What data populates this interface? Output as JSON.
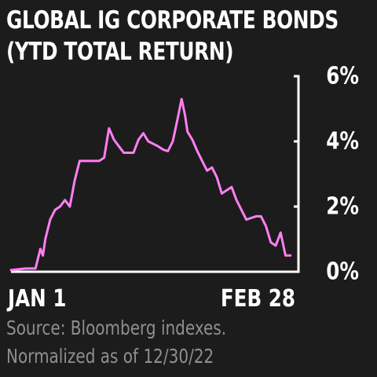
{
  "chart_data": {
    "type": "line",
    "title": "GLOBAL IG CORPORATE BONDS",
    "subtitle": "(YTD TOTAL RETURN)",
    "x_tick_labels": [
      "JAN 1",
      "FEB 28"
    ],
    "x_range": [
      1,
      59
    ],
    "y_tick_labels": [
      "0%",
      "2%",
      "4%",
      "6%"
    ],
    "y_ticks": [
      0,
      2,
      4,
      6
    ],
    "ylim": [
      0,
      6
    ],
    "y_axis_position": "right",
    "grid": false,
    "line_color": "#ff7ff2",
    "series": [
      {
        "x": [
          1,
          4,
          6,
          7,
          7.5,
          8,
          9,
          10,
          11,
          12,
          13,
          14,
          15,
          16,
          17,
          19,
          20,
          21,
          22,
          23,
          24,
          25,
          26,
          27,
          28,
          29,
          31,
          32,
          33,
          34,
          35,
          35.8,
          36.5,
          37,
          38,
          39,
          40,
          41,
          42,
          43,
          44,
          45,
          46,
          47,
          48,
          49,
          50,
          51,
          52,
          53,
          54,
          55,
          56,
          57,
          58
        ],
        "y": [
          0.05,
          0.1,
          0.1,
          0.7,
          0.5,
          1.0,
          1.6,
          1.9,
          2.0,
          2.2,
          2.0,
          2.8,
          3.4,
          3.4,
          3.4,
          3.4,
          3.5,
          4.4,
          4.05,
          3.85,
          3.65,
          3.65,
          3.65,
          4.05,
          4.25,
          4.0,
          3.85,
          3.75,
          3.7,
          4.0,
          4.7,
          5.3,
          4.8,
          4.3,
          4.05,
          3.7,
          3.4,
          3.1,
          3.2,
          2.9,
          2.4,
          2.5,
          2.6,
          2.2,
          1.9,
          1.6,
          1.65,
          1.7,
          1.7,
          1.4,
          0.9,
          0.8,
          1.2,
          0.5,
          0.5
        ]
      }
    ]
  },
  "source": {
    "line1": "Source: Bloomberg indexes.",
    "line2": "Normalized as of 12/30/22"
  }
}
